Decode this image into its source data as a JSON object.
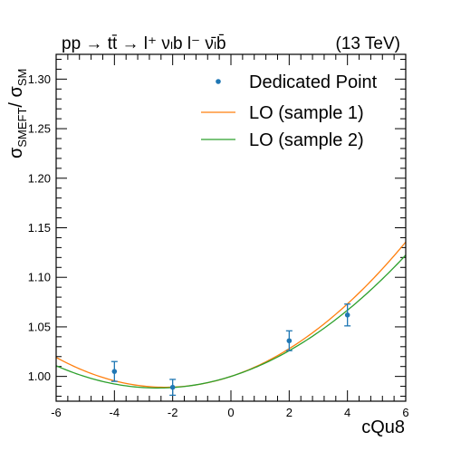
{
  "chart_data": {
    "type": "line",
    "title_left": "pp → tt̄ → l⁺ νₗb  l⁻ ν̄ₗb̄",
    "title_right": "(13 TeV)",
    "xlabel": "cQu8",
    "ylabel_main": "σ",
    "ylabel_sub1": "SMEFT",
    "ylabel_mid": "/ σ",
    "ylabel_sub2": "SM",
    "xlim": [
      -6,
      6
    ],
    "ylim": [
      0.975,
      1.325
    ],
    "x_ticks": [
      -6,
      -4,
      -2,
      0,
      2,
      4,
      6
    ],
    "x_tick_labels": [
      "-6",
      "-4",
      "-2",
      "0",
      "2",
      "4",
      "6"
    ],
    "y_ticks": [
      1.0,
      1.05,
      1.1,
      1.15,
      1.2,
      1.25,
      1.3
    ],
    "y_tick_labels": [
      "1.00",
      "1.05",
      "1.10",
      "1.15",
      "1.20",
      "1.25",
      "1.30"
    ],
    "legend_position": "top-right",
    "points": {
      "name": "Dedicated Point",
      "color": "#1f77b4",
      "x": [
        -4,
        -2,
        2,
        4
      ],
      "y": [
        1.005,
        0.989,
        1.036,
        1.062
      ],
      "err": [
        0.01,
        0.008,
        0.01,
        0.011
      ]
    },
    "series": [
      {
        "name": "LO (sample 1)",
        "color": "#ff7f0e",
        "coef": [
          1.0,
          0.0097,
          0.00215
        ]
      },
      {
        "name": "LO (sample 2)",
        "color": "#2ca02c",
        "coef": [
          1.0,
          0.0093,
          0.00185
        ]
      }
    ]
  }
}
